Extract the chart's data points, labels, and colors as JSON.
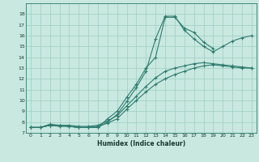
{
  "title": "",
  "xlabel": "Humidex (Indice chaleur)",
  "ylabel": "",
  "bg_color": "#c8e8e0",
  "grid_color": "#9ecec4",
  "line_color": "#2e7b6e",
  "xlim": [
    -0.5,
    23.5
  ],
  "ylim": [
    7,
    19
  ],
  "yticks": [
    7,
    8,
    9,
    10,
    11,
    12,
    13,
    14,
    15,
    16,
    17,
    18
  ],
  "xticks": [
    0,
    1,
    2,
    3,
    4,
    5,
    6,
    7,
    8,
    9,
    10,
    11,
    12,
    13,
    14,
    15,
    16,
    17,
    18,
    19,
    20,
    21,
    22,
    23
  ],
  "lines": [
    {
      "x": [
        0,
        1,
        2,
        3,
        4,
        5,
        6,
        7,
        8,
        9,
        10,
        11,
        12,
        13,
        14,
        15,
        16,
        17,
        18,
        19
      ],
      "y": [
        7.5,
        7.5,
        7.7,
        7.7,
        7.6,
        7.5,
        7.5,
        7.5,
        8.3,
        9.0,
        10.3,
        11.5,
        13.0,
        14.0,
        17.7,
        17.7,
        16.7,
        16.3,
        15.4,
        14.8
      ]
    },
    {
      "x": [
        0,
        1,
        2,
        3,
        4,
        5,
        6,
        7,
        8,
        9,
        10,
        11,
        12,
        13,
        14,
        15,
        16,
        17,
        18,
        19,
        20,
        21,
        22,
        23
      ],
      "y": [
        7.5,
        7.5,
        7.7,
        7.7,
        7.6,
        7.5,
        7.5,
        7.5,
        8.0,
        8.7,
        9.9,
        11.2,
        12.7,
        15.7,
        17.8,
        17.8,
        16.5,
        15.7,
        15.0,
        14.5,
        15.0,
        15.5,
        15.8,
        16.0
      ]
    },
    {
      "x": [
        0,
        1,
        2,
        3,
        4,
        5,
        6,
        7,
        8,
        9,
        10,
        11,
        12,
        13,
        14,
        15,
        16,
        17,
        18,
        19,
        20,
        21,
        22,
        23
      ],
      "y": [
        7.5,
        7.5,
        7.7,
        7.6,
        7.6,
        7.5,
        7.5,
        7.6,
        7.9,
        8.3,
        9.2,
        10.0,
        10.8,
        11.5,
        12.0,
        12.4,
        12.7,
        13.0,
        13.2,
        13.3,
        13.2,
        13.1,
        13.0,
        13.0
      ]
    },
    {
      "x": [
        0,
        1,
        2,
        3,
        4,
        5,
        6,
        7,
        8,
        9,
        10,
        11,
        12,
        13,
        14,
        15,
        16,
        17,
        18,
        19,
        20,
        21,
        22,
        23
      ],
      "y": [
        7.5,
        7.5,
        7.8,
        7.7,
        7.7,
        7.6,
        7.6,
        7.7,
        8.1,
        8.6,
        9.5,
        10.4,
        11.3,
        12.1,
        12.7,
        13.0,
        13.2,
        13.4,
        13.5,
        13.4,
        13.3,
        13.2,
        13.1,
        13.0
      ]
    }
  ]
}
